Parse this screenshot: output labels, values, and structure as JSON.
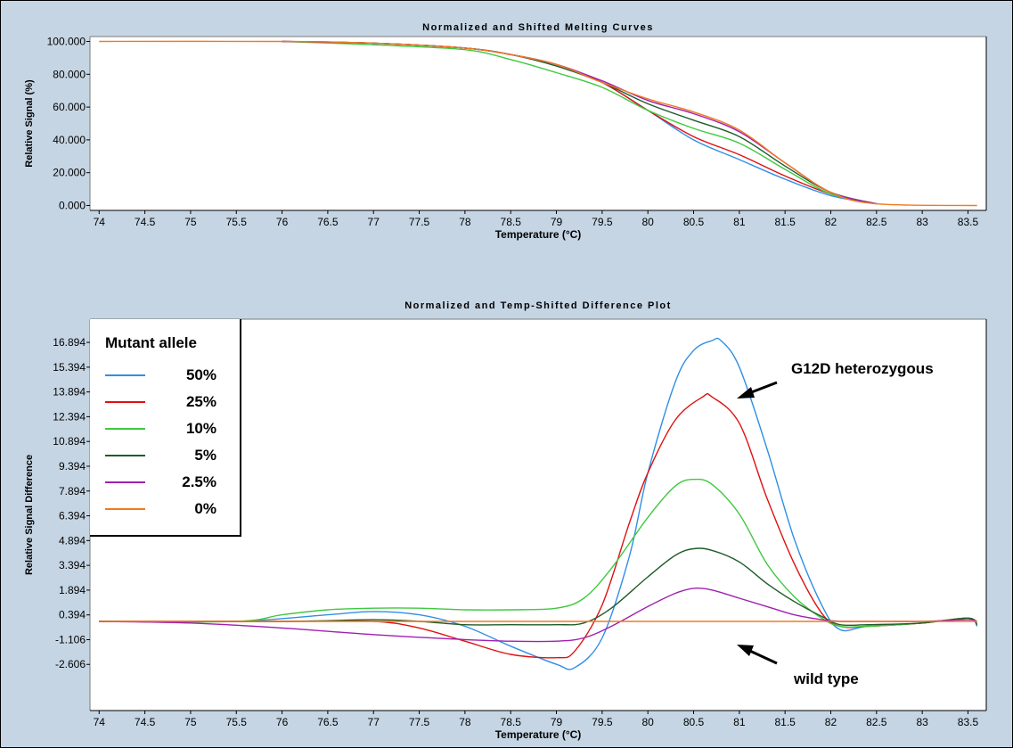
{
  "chart_data": [
    {
      "type": "line",
      "title": "Normalized and Shifted Melting Curves",
      "xlabel": "Temperature (°C)",
      "ylabel": "Relative Signal (%)",
      "xlim": [
        73.9,
        83.7
      ],
      "ylim": [
        -3,
        103
      ],
      "x_ticks": [
        "74",
        "74.5",
        "75",
        "75.5",
        "76",
        "76.5",
        "77",
        "77.5",
        "78",
        "78.5",
        "79",
        "79.5",
        "80",
        "80.5",
        "81",
        "81.5",
        "82",
        "82.5",
        "83",
        "83.5"
      ],
      "y_ticks": [
        "0.000",
        "20.000",
        "40.000",
        "60.000",
        "80.000",
        "100.000"
      ],
      "series": [
        {
          "color": "#2f8fe6",
          "x": [
            76.0,
            77.0,
            78.0,
            78.5,
            79.0,
            79.5,
            80.0,
            80.5,
            81.0,
            81.5,
            82.0,
            82.5
          ],
          "values": [
            100,
            99,
            96,
            92,
            86,
            75,
            58,
            40,
            28,
            16,
            6,
            1
          ]
        },
        {
          "color": "#e01010",
          "x": [
            76.0,
            77.0,
            78.0,
            78.5,
            79.0,
            79.5,
            80.0,
            80.5,
            81.0,
            81.5,
            82.0,
            82.5
          ],
          "values": [
            100,
            99,
            96,
            92,
            86,
            75,
            58,
            42,
            31,
            18,
            7,
            1
          ]
        },
        {
          "color": "#40c840",
          "x": [
            76.0,
            77.0,
            78.0,
            78.5,
            79.0,
            79.5,
            80.0,
            80.5,
            81.0,
            81.5,
            82.0,
            82.5
          ],
          "values": [
            100,
            98,
            95,
            89,
            81,
            72,
            58,
            47,
            38,
            22,
            7,
            1
          ]
        },
        {
          "color": "#1e5c2a",
          "x": [
            76.0,
            77.0,
            78.0,
            78.5,
            79.0,
            79.5,
            80.0,
            80.5,
            81.0,
            81.5,
            82.0,
            82.5
          ],
          "values": [
            100,
            99,
            96,
            92,
            85,
            75,
            62,
            52,
            42,
            24,
            8,
            1
          ]
        },
        {
          "color": "#a020b0",
          "x": [
            76.0,
            77.0,
            78.0,
            78.5,
            79.0,
            79.5,
            80.0,
            80.5,
            81.0,
            81.5,
            82.0,
            82.5
          ],
          "values": [
            100,
            99,
            96,
            92,
            86,
            76,
            64,
            56,
            45,
            26,
            8,
            1
          ]
        },
        {
          "color": "#f07a20",
          "x": [
            74.0,
            76.0,
            77.0,
            78.0,
            78.5,
            79.0,
            79.5,
            80.0,
            80.5,
            81.0,
            81.5,
            82.0,
            82.5,
            83.6
          ],
          "values": [
            100,
            100,
            99,
            96,
            92,
            86,
            75,
            65,
            57,
            46,
            26,
            8,
            1,
            0
          ]
        }
      ]
    },
    {
      "type": "line",
      "title": "Normalized and Temp-Shifted Difference Plot",
      "xlabel": "Temperature (°C)",
      "ylabel": "Relative Signal Difference",
      "xlim": [
        73.9,
        83.7
      ],
      "ylim": [
        -5.4,
        18.3
      ],
      "x_ticks": [
        "74",
        "74.5",
        "75",
        "75.5",
        "76",
        "76.5",
        "77",
        "77.5",
        "78",
        "78.5",
        "79",
        "79.5",
        "80",
        "80.5",
        "81",
        "81.5",
        "82",
        "82.5",
        "83",
        "83.5"
      ],
      "y_ticks": [
        "-2.606",
        "-1.106",
        "0.394",
        "1.894",
        "3.394",
        "4.894",
        "6.394",
        "7.894",
        "9.394",
        "10.894",
        "12.394",
        "13.894",
        "15.394",
        "16.894"
      ],
      "legend_title": "Mutant allele",
      "series": [
        {
          "name": "50%",
          "color": "#2f8fe6",
          "x": [
            74.0,
            75.5,
            76.5,
            77.0,
            77.5,
            78.0,
            78.5,
            79.0,
            79.2,
            79.5,
            79.8,
            80.0,
            80.3,
            80.5,
            80.7,
            80.8,
            81.0,
            81.3,
            81.6,
            81.9,
            82.1,
            82.4,
            83.0,
            83.5,
            83.6
          ],
          "values": [
            0.0,
            0.0,
            0.4,
            0.6,
            0.4,
            -0.3,
            -1.5,
            -2.6,
            -2.8,
            -1.0,
            4.0,
            9.0,
            14.5,
            16.4,
            17.0,
            17.0,
            15.4,
            10.5,
            5.0,
            1.0,
            -0.5,
            -0.3,
            -0.1,
            0.2,
            -0.3
          ]
        },
        {
          "name": "25%",
          "color": "#e01010",
          "x": [
            74.0,
            76.0,
            77.0,
            77.5,
            78.0,
            78.5,
            79.0,
            79.2,
            79.5,
            79.8,
            80.0,
            80.3,
            80.6,
            80.7,
            81.0,
            81.3,
            81.6,
            81.9,
            82.1,
            82.4,
            83.0,
            83.5,
            83.6
          ],
          "values": [
            0.0,
            0.0,
            0.0,
            -0.4,
            -1.2,
            -2.0,
            -2.2,
            -1.8,
            1.0,
            6.0,
            9.0,
            12.2,
            13.6,
            13.6,
            12.0,
            7.5,
            3.5,
            0.5,
            -0.3,
            -0.3,
            -0.1,
            0.2,
            -0.2
          ]
        },
        {
          "name": "10%",
          "color": "#40c840",
          "x": [
            74.0,
            75.5,
            76.0,
            76.5,
            77.0,
            77.5,
            78.0,
            78.5,
            79.0,
            79.3,
            79.6,
            80.0,
            80.3,
            80.5,
            80.7,
            81.0,
            81.3,
            81.6,
            81.9,
            82.1,
            82.4,
            83.0,
            83.5,
            83.6
          ],
          "values": [
            0.0,
            0.0,
            0.4,
            0.7,
            0.8,
            0.8,
            0.7,
            0.7,
            0.8,
            1.4,
            3.2,
            6.3,
            8.2,
            8.6,
            8.3,
            6.5,
            3.5,
            1.5,
            0.2,
            -0.3,
            -0.3,
            -0.1,
            0.2,
            -0.2
          ]
        },
        {
          "name": "5%",
          "color": "#1e5c2a",
          "x": [
            74.0,
            76.0,
            77.0,
            77.5,
            78.0,
            78.5,
            79.0,
            79.3,
            79.6,
            80.0,
            80.3,
            80.5,
            80.7,
            81.0,
            81.3,
            81.6,
            81.9,
            82.1,
            82.4,
            83.0,
            83.5,
            83.6
          ],
          "values": [
            0.0,
            0.0,
            0.1,
            0.0,
            -0.2,
            -0.2,
            -0.2,
            -0.1,
            0.8,
            2.7,
            4.0,
            4.4,
            4.3,
            3.6,
            2.3,
            1.2,
            0.3,
            -0.2,
            -0.2,
            -0.1,
            0.2,
            -0.2
          ]
        },
        {
          "name": "2.5%",
          "color": "#a020b0",
          "x": [
            74.0,
            75.0,
            76.0,
            77.0,
            78.0,
            78.5,
            79.0,
            79.3,
            79.6,
            80.0,
            80.3,
            80.5,
            80.7,
            81.0,
            81.3,
            81.6,
            81.9,
            82.1,
            82.4,
            83.0,
            83.5,
            83.6
          ],
          "values": [
            0.0,
            -0.1,
            -0.4,
            -0.8,
            -1.1,
            -1.2,
            -1.2,
            -1.0,
            -0.3,
            0.9,
            1.7,
            2.0,
            1.9,
            1.4,
            0.9,
            0.4,
            0.1,
            0.0,
            0.0,
            0.0,
            0.1,
            0.0
          ]
        },
        {
          "name": "0%",
          "color": "#f07a20",
          "x": [
            74.0,
            83.6
          ],
          "values": [
            0.0,
            0.0
          ]
        }
      ],
      "annotations": [
        "G12D heterozygous",
        "wild type"
      ]
    }
  ]
}
